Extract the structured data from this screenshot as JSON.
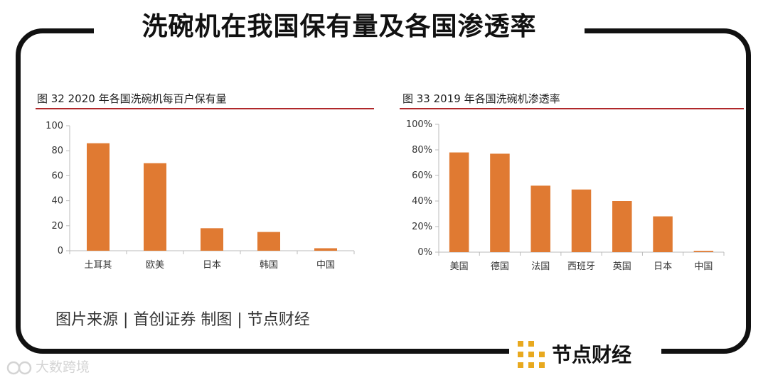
{
  "header": {
    "title": "洗碗机在我国保有量及各国渗透率"
  },
  "figures": {
    "left_title": "图 32  2020 年各国洗碗机每百户保有量",
    "right_title": "图 33  2019 年各国洗碗机渗透率"
  },
  "footer": {
    "source": "图片来源 | 首创证券   制图 | 节点财经",
    "brand": "节点财经",
    "watermark": "大数跨境"
  },
  "colors": {
    "bar": "#E07A32",
    "rule": "#B0282A",
    "brand_gold": "#E8A91F"
  },
  "chart_data": [
    {
      "type": "bar",
      "title": "图 32  2020 年各国洗碗机每百户保有量",
      "categories": [
        "土耳其",
        "欧美",
        "日本",
        "韩国",
        "中国"
      ],
      "values": [
        86,
        70,
        18,
        15,
        2
      ],
      "ylim": [
        0,
        100
      ],
      "yticks": [
        0,
        20,
        40,
        60,
        80,
        100
      ],
      "ytick_labels": [
        "0",
        "20",
        "40",
        "60",
        "80",
        "100"
      ],
      "grid": false
    },
    {
      "type": "bar",
      "title": "图 33  2019 年各国洗碗机渗透率",
      "categories": [
        "美国",
        "德国",
        "法国",
        "西班牙",
        "英国",
        "日本",
        "中国"
      ],
      "values": [
        78,
        77,
        52,
        49,
        40,
        28,
        1
      ],
      "ylim": [
        0,
        100
      ],
      "yticks": [
        0,
        20,
        40,
        60,
        80,
        100
      ],
      "ytick_labels": [
        "0%",
        "20%",
        "40%",
        "60%",
        "80%",
        "100%"
      ],
      "grid": false
    }
  ]
}
